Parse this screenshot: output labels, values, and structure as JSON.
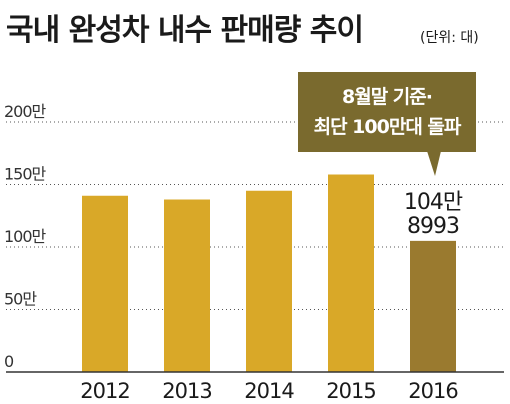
{
  "chart_data": {
    "type": "bar",
    "title": "국내 완성차 내수 판매량 추이",
    "unit_label": "(단위: 대)",
    "categories": [
      "2012",
      "2013",
      "2014",
      "2015",
      "2016"
    ],
    "values": [
      1410000,
      1380000,
      1450000,
      1580000,
      1048993
    ],
    "ylim": [
      0,
      2000000
    ],
    "yticks": [
      {
        "value": 0,
        "label": "0"
      },
      {
        "value": 500000,
        "label": "50만"
      },
      {
        "value": 1000000,
        "label": "100만"
      },
      {
        "value": 1500000,
        "label": "150만"
      },
      {
        "value": 2000000,
        "label": "200만"
      }
    ],
    "grid": true,
    "data_labels": [
      {
        "category": "2016",
        "lines": [
          "104만",
          "8993"
        ]
      }
    ],
    "annotation": {
      "category": "2016",
      "lines": [
        "8월말 기준·",
        "최단 100만대 돌파"
      ]
    },
    "colors": {
      "bar": "#d9a828",
      "bar_highlight": "#9a7a2f",
      "callout_bg": "#7a6a2e",
      "axis": "#333333",
      "grid": "#555555"
    }
  }
}
